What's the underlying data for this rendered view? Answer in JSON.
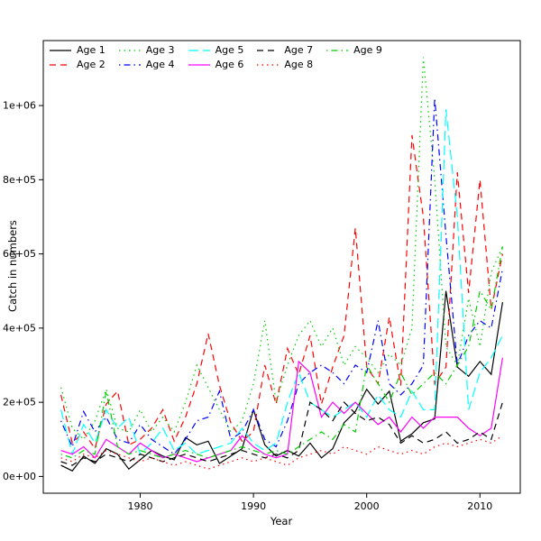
{
  "chart_data": {
    "type": "line",
    "title": "",
    "xlabel": "Year",
    "ylabel": "Catch in numbers",
    "grid": false,
    "legend_position": "top-left, 5 columns, no border",
    "xlim": [
      1973,
      2012
    ],
    "ylim": [
      0,
      1130000
    ],
    "xticks": {
      "values": [
        1980,
        1990,
        2000,
        2010
      ],
      "labels": [
        "1980",
        "1990",
        "2000",
        "2010"
      ]
    },
    "yticks": {
      "values": [
        0,
        200000,
        400000,
        600000,
        800000,
        1000000
      ],
      "labels": [
        "0e+00",
        "2e+05",
        "4e+05",
        "6e+05",
        "8e+05",
        "1e+06"
      ]
    },
    "x": [
      1973,
      1974,
      1975,
      1976,
      1977,
      1978,
      1979,
      1980,
      1981,
      1982,
      1983,
      1984,
      1985,
      1986,
      1987,
      1988,
      1989,
      1990,
      1991,
      1992,
      1993,
      1994,
      1995,
      1996,
      1997,
      1998,
      1999,
      2000,
      2001,
      2002,
      2003,
      2004,
      2005,
      2006,
      2007,
      2008,
      2009,
      2010,
      2011,
      2012
    ],
    "series": [
      {
        "name": "Age 1",
        "color": "#000000",
        "linetype": "solid",
        "values": [
          30000,
          15000,
          55000,
          35000,
          75000,
          60000,
          20000,
          45000,
          70000,
          55000,
          45000,
          105000,
          85000,
          95000,
          35000,
          55000,
          75000,
          180000,
          85000,
          55000,
          70000,
          55000,
          90000,
          50000,
          75000,
          145000,
          175000,
          235000,
          195000,
          230000,
          95000,
          115000,
          145000,
          155000,
          500000,
          295000,
          270000,
          310000,
          275000,
          470000
        ]
      },
      {
        "name": "Age 2",
        "color": "#FF0000",
        "linetype": "dashed",
        "values": [
          220000,
          90000,
          120000,
          75000,
          195000,
          230000,
          85000,
          100000,
          130000,
          180000,
          95000,
          160000,
          250000,
          385000,
          245000,
          145000,
          95000,
          120000,
          300000,
          195000,
          345000,
          275000,
          380000,
          195000,
          295000,
          380000,
          670000,
          295000,
          250000,
          430000,
          245000,
          920000,
          700000,
          250000,
          295000,
          820000,
          495000,
          800000,
          450000,
          600000
        ]
      },
      {
        "name": "Age 3",
        "color": "#00CD00",
        "linetype": "dotted",
        "values": [
          240000,
          130000,
          100000,
          150000,
          235000,
          130000,
          120000,
          180000,
          120000,
          160000,
          120000,
          200000,
          300000,
          240000,
          180000,
          120000,
          150000,
          250000,
          420000,
          200000,
          300000,
          380000,
          420000,
          350000,
          400000,
          300000,
          350000,
          320000,
          280000,
          330000,
          300000,
          400000,
          1130000,
          800000,
          350000,
          300000,
          480000,
          350000,
          550000,
          620000
        ]
      },
      {
        "name": "Age 4",
        "color": "#0000FF",
        "linetype": "dotdash",
        "values": [
          150000,
          80000,
          175000,
          120000,
          160000,
          100000,
          90000,
          140000,
          100000,
          80000,
          60000,
          100000,
          150000,
          160000,
          230000,
          100000,
          120000,
          180000,
          100000,
          80000,
          150000,
          250000,
          280000,
          300000,
          280000,
          250000,
          300000,
          280000,
          420000,
          250000,
          220000,
          250000,
          300000,
          1020000,
          650000,
          300000,
          380000,
          420000,
          400000,
          560000
        ]
      },
      {
        "name": "Age 5",
        "color": "#00FFFF",
        "linetype": "longdash",
        "values": [
          180000,
          60000,
          140000,
          90000,
          180000,
          130000,
          160000,
          60000,
          90000,
          130000,
          70000,
          90000,
          60000,
          70000,
          80000,
          90000,
          130000,
          90000,
          70000,
          90000,
          200000,
          280000,
          200000,
          180000,
          160000,
          180000,
          200000,
          160000,
          220000,
          180000,
          160000,
          230000,
          180000,
          180000,
          990000,
          700000,
          180000,
          280000,
          320000,
          380000
        ]
      },
      {
        "name": "Age 6",
        "color": "#FF00FF",
        "linetype": "solid",
        "values": [
          70000,
          60000,
          80000,
          50000,
          100000,
          80000,
          60000,
          90000,
          70000,
          50000,
          60000,
          50000,
          40000,
          50000,
          60000,
          70000,
          110000,
          80000,
          60000,
          50000,
          60000,
          310000,
          280000,
          160000,
          200000,
          170000,
          200000,
          170000,
          140000,
          160000,
          120000,
          160000,
          130000,
          160000,
          160000,
          160000,
          130000,
          110000,
          130000,
          320000
        ]
      },
      {
        "name": "Age 7",
        "color": "#000000",
        "linetype": "dashed",
        "values": [
          40000,
          30000,
          50000,
          40000,
          60000,
          50000,
          40000,
          60000,
          50000,
          40000,
          50000,
          60000,
          50000,
          40000,
          50000,
          60000,
          70000,
          60000,
          50000,
          60000,
          50000,
          70000,
          200000,
          180000,
          150000,
          200000,
          170000,
          150000,
          160000,
          140000,
          90000,
          110000,
          90000,
          100000,
          120000,
          90000,
          100000,
          120000,
          100000,
          200000
        ]
      },
      {
        "name": "Age 8",
        "color": "#FF0000",
        "linetype": "dotted",
        "values": [
          50000,
          40000,
          60000,
          50000,
          70000,
          60000,
          50000,
          40000,
          50000,
          40000,
          30000,
          40000,
          30000,
          20000,
          30000,
          40000,
          50000,
          40000,
          50000,
          40000,
          30000,
          50000,
          60000,
          70000,
          60000,
          80000,
          70000,
          60000,
          80000,
          70000,
          60000,
          70000,
          60000,
          80000,
          90000,
          80000,
          90000,
          100000,
          90000,
          110000
        ]
      },
      {
        "name": "Age 9",
        "color": "#00CD00",
        "linetype": "dotdash",
        "values": [
          60000,
          50000,
          70000,
          60000,
          230000,
          80000,
          60000,
          70000,
          60000,
          50000,
          60000,
          70000,
          60000,
          50000,
          60000,
          70000,
          80000,
          70000,
          60000,
          70000,
          60000,
          80000,
          100000,
          120000,
          100000,
          140000,
          120000,
          300000,
          250000,
          200000,
          280000,
          220000,
          250000,
          280000,
          250000,
          300000,
          350000,
          500000,
          450000,
          620000
        ]
      }
    ]
  }
}
